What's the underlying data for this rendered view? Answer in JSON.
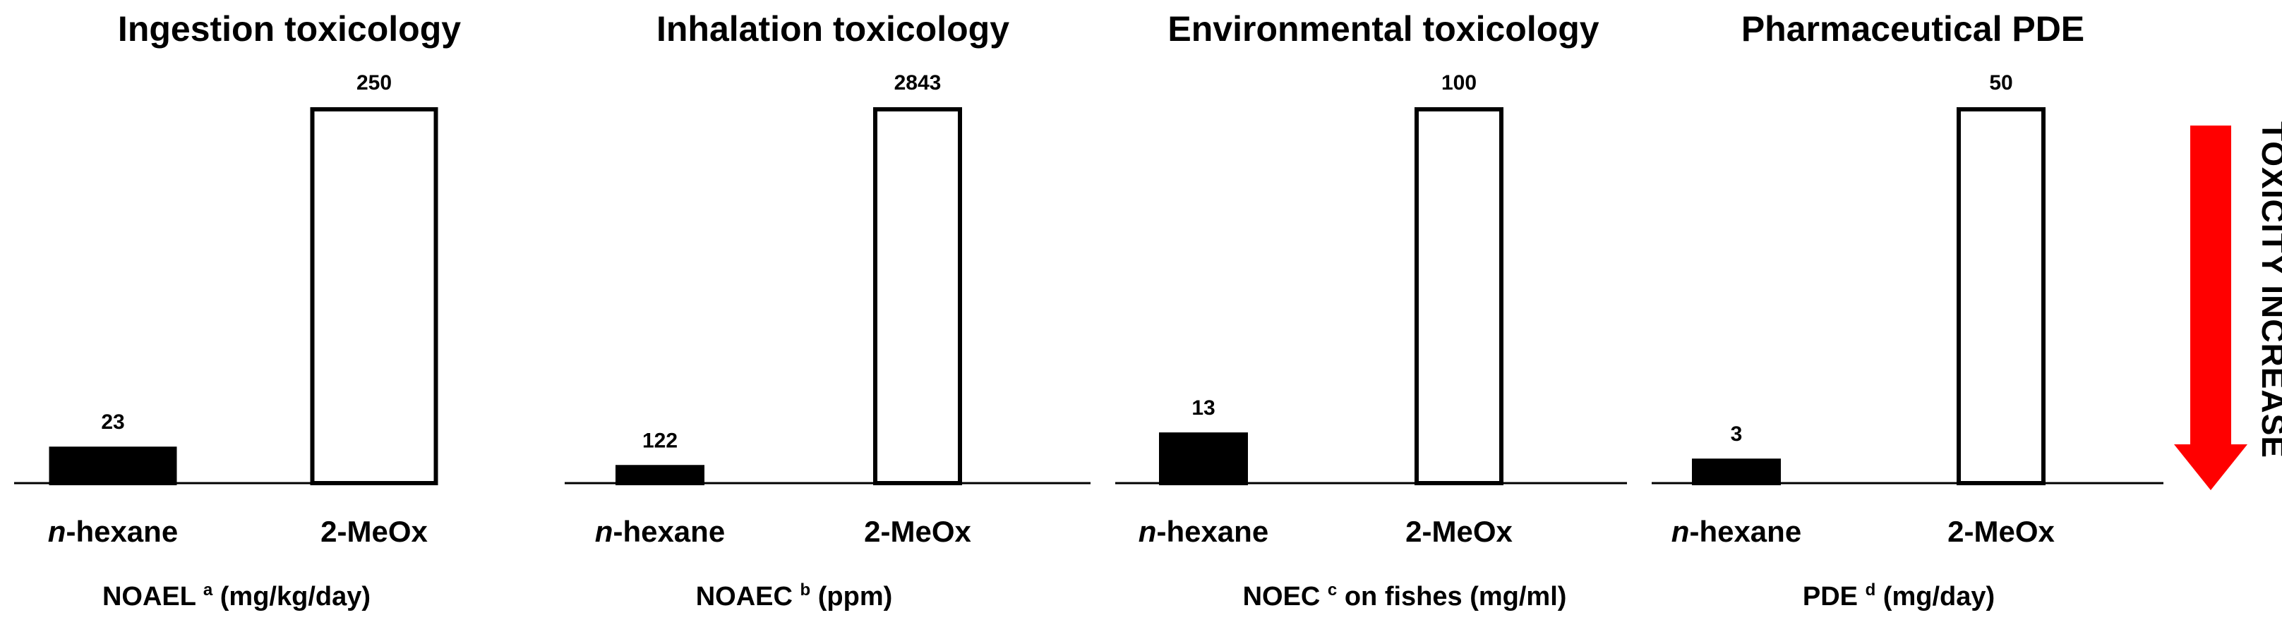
{
  "chart_data": [
    {
      "type": "bar",
      "title": "Ingestion toxicology",
      "categories": [
        {
          "prefix": "n",
          "rest": "-hexane",
          "italic_prefix": true
        },
        {
          "prefix": "",
          "rest": "2-MeOx",
          "italic_prefix": false
        }
      ],
      "values": [
        23,
        250
      ],
      "value_labels": [
        "23",
        "250"
      ],
      "ylim": [
        0,
        250
      ],
      "metric": {
        "name": "NOAEL",
        "sup": "a",
        "unit": " (mg/kg/day)"
      }
    },
    {
      "type": "bar",
      "title": "Inhalation toxicology",
      "categories": [
        {
          "prefix": "n",
          "rest": "-hexane",
          "italic_prefix": true
        },
        {
          "prefix": "",
          "rest": "2-MeOx",
          "italic_prefix": false
        }
      ],
      "values": [
        122,
        2843
      ],
      "value_labels": [
        "122",
        "2843"
      ],
      "ylim": [
        0,
        2843
      ],
      "metric": {
        "name": "NOAEC",
        "sup": "b",
        "unit": " (ppm)"
      }
    },
    {
      "type": "bar",
      "title": "Environmental toxicology",
      "categories": [
        {
          "prefix": "n",
          "rest": "-hexane",
          "italic_prefix": true
        },
        {
          "prefix": "",
          "rest": "2-MeOx",
          "italic_prefix": false
        }
      ],
      "values": [
        13,
        100
      ],
      "value_labels": [
        "13",
        "100"
      ],
      "ylim": [
        0,
        100
      ],
      "metric": {
        "name": "NOEC",
        "sup": "c",
        "unit": " on fishes (mg/ml)"
      }
    },
    {
      "type": "bar",
      "title": "Pharmaceutical PDE",
      "categories": [
        {
          "prefix": "n",
          "rest": "-hexane",
          "italic_prefix": true
        },
        {
          "prefix": "",
          "rest": "2-MeOx",
          "italic_prefix": false
        }
      ],
      "values": [
        3,
        50
      ],
      "value_labels": [
        "3",
        "50"
      ],
      "ylim": [
        0,
        50
      ],
      "metric": {
        "name": "PDE",
        "sup": "d",
        "unit": " (mg/day)"
      }
    }
  ],
  "annotation": {
    "text": "TOXICITY INCREASE",
    "arrow_color": "#ff0000"
  },
  "colors": {
    "hexane_fill": "#000000",
    "meox_fill": "#ffffff",
    "stroke": "#000000"
  }
}
